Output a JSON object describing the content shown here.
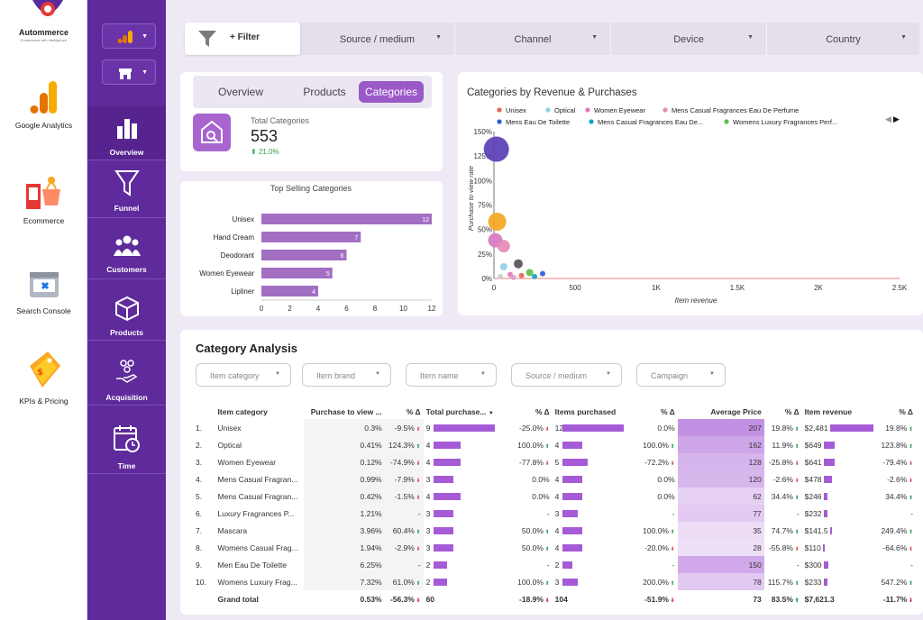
{
  "brand": {
    "name": "Autommerce",
    "tagline": "Ecommerce with Intelligence"
  },
  "apps": [
    {
      "label": "Google Analytics",
      "icon": "google-analytics-icon"
    },
    {
      "label": "Ecommerce",
      "icon": "shopping-icon"
    },
    {
      "label": "Search Console",
      "icon": "toolbox-icon"
    },
    {
      "label": "KPIs & Pricing",
      "icon": "price-tag-icon"
    }
  ],
  "nav": {
    "items": [
      {
        "label": "Overview",
        "icon": "bar-chart-icon"
      },
      {
        "label": "Funnel",
        "icon": "funnel-icon"
      },
      {
        "label": "Customers",
        "icon": "people-icon"
      },
      {
        "label": "Products",
        "icon": "box-icon"
      },
      {
        "label": "Acquisition",
        "icon": "hand-coins-icon"
      },
      {
        "label": "Time",
        "icon": "calendar-clock-icon"
      }
    ]
  },
  "filters": {
    "filter_label": "+ Filter",
    "dropdowns": [
      "Source / medium",
      "Channel",
      "Device",
      "Country"
    ]
  },
  "tabs": [
    "Overview",
    "Products",
    "Categories"
  ],
  "active_tab": "Categories",
  "kpi": {
    "title": "Total Categories",
    "value": "553",
    "delta": "21.0%"
  },
  "top_selling": {
    "title": "Top Selling Categories",
    "categories": [
      "Unisex",
      "Hand Cream",
      "Deodorant",
      "Women Eyewear",
      "Lipliner"
    ],
    "values": [
      12,
      7,
      6,
      5,
      4
    ],
    "ticks": [
      "0",
      "2",
      "4",
      "6",
      "8",
      "10",
      "12"
    ],
    "color": "#a26fc3"
  },
  "scatter": {
    "title": "Categories by Revenue & Purchases",
    "xlabel": "Item revenue",
    "ylabel": "Purchase to view rate",
    "xticks": [
      "0",
      "500",
      "1K",
      "1.5K",
      "2K",
      "2.5K"
    ],
    "yticks": [
      "0%",
      "25%",
      "50%",
      "75%",
      "100%",
      "125%",
      "150%"
    ],
    "legend": [
      {
        "name": "Unisex",
        "color": "#e0675a"
      },
      {
        "name": "Optical",
        "color": "#8fcfea"
      },
      {
        "name": "Women Eyewear",
        "color": "#e57ab8"
      },
      {
        "name": "Mens Casual Fragrances Eau De Perfume",
        "color": "#e58ab8"
      },
      {
        "name": "Mens Eau De Toilette",
        "color": "#2d5bd8"
      },
      {
        "name": "Mens Casual Fragrances Eau De...",
        "color": "#12a3c9"
      },
      {
        "name": "Womens Luxury Fragrances Perf...",
        "color": "#5cc04b"
      }
    ]
  },
  "chart_data": {
    "type": "scatter",
    "title": "Categories by Revenue & Purchases",
    "xlabel": "Item revenue",
    "ylabel": "Purchase to view rate",
    "xlim": [
      0,
      2500
    ],
    "ylim": [
      0,
      150
    ],
    "points": [
      {
        "x": 15,
        "y": 132,
        "size": 14,
        "color": "#5b3fb5"
      },
      {
        "x": 20,
        "y": 58,
        "size": 10,
        "color": "#f5a623"
      },
      {
        "x": 8,
        "y": 39,
        "size": 8,
        "color": "#d77ac0"
      },
      {
        "x": 60,
        "y": 33,
        "size": 7,
        "color": "#e58ab8"
      },
      {
        "x": 150,
        "y": 15,
        "size": 5,
        "color": "#555555"
      },
      {
        "x": 60,
        "y": 12,
        "size": 4,
        "color": "#8fcfea"
      },
      {
        "x": 220,
        "y": 6,
        "size": 4,
        "color": "#5cc04b"
      },
      {
        "x": 100,
        "y": 4,
        "size": 3,
        "color": "#e57ab8"
      },
      {
        "x": 170,
        "y": 3,
        "size": 3,
        "color": "#e0675a"
      },
      {
        "x": 300,
        "y": 5,
        "size": 3,
        "color": "#2d5bd8"
      },
      {
        "x": 250,
        "y": 2,
        "size": 3,
        "color": "#12a3c9"
      },
      {
        "x": 40,
        "y": 2,
        "size": 3,
        "color": "#cccccc"
      },
      {
        "x": 120,
        "y": 1,
        "size": 3,
        "color": "#d7a0d0"
      }
    ]
  },
  "analysis": {
    "title": "Category Analysis",
    "chips": [
      "Item category",
      "Item brand",
      "Item name",
      "Source / medium",
      "Campaign"
    ],
    "headers": [
      "Item category",
      "Purchase to view ...",
      "% Δ",
      "Total purchase...",
      "% Δ",
      "Items purchased",
      "% Δ",
      "Average Price",
      "% Δ",
      "Item revenue",
      "% Δ"
    ],
    "rows": [
      {
        "idx": "1.",
        "category": "Unisex",
        "ptv": "0.3%",
        "ptv_d": "-9.5%",
        "tp": "9",
        "tp_d": "-25.0%",
        "ip": "12",
        "ip_d": "0.0%",
        "price": "207",
        "price_d": "19.8%",
        "rev": "$2,481",
        "rev_d": "19.8%"
      },
      {
        "idx": "2.",
        "category": "Optical",
        "ptv": "0.41%",
        "ptv_d": "124.3%",
        "tp": "4",
        "tp_d": "100.0%",
        "ip": "4",
        "ip_d": "100.0%",
        "price": "162",
        "price_d": "11.9%",
        "rev": "$649",
        "rev_d": "123.8%"
      },
      {
        "idx": "3.",
        "category": "Women Eyewear",
        "ptv": "0.12%",
        "ptv_d": "-74.9%",
        "tp": "4",
        "tp_d": "-77.8%",
        "ip": "5",
        "ip_d": "-72.2%",
        "price": "128",
        "price_d": "-25.8%",
        "rev": "$641",
        "rev_d": "-79.4%"
      },
      {
        "idx": "4.",
        "category": "Mens Casual Fragran...",
        "ptv": "0.99%",
        "ptv_d": "-7.9%",
        "tp": "3",
        "tp_d": "0.0%",
        "ip": "4",
        "ip_d": "0.0%",
        "price": "120",
        "price_d": "-2.6%",
        "rev": "$478",
        "rev_d": "-2.6%"
      },
      {
        "idx": "5.",
        "category": "Mens Casual Fragran...",
        "ptv": "0.42%",
        "ptv_d": "-1.5%",
        "tp": "4",
        "tp_d": "0.0%",
        "ip": "4",
        "ip_d": "0.0%",
        "price": "62",
        "price_d": "34.4%",
        "rev": "$246",
        "rev_d": "34.4%"
      },
      {
        "idx": "6.",
        "category": "Luxury Fragrances P...",
        "ptv": "1.21%",
        "ptv_d": "-",
        "tp": "3",
        "tp_d": "-",
        "ip": "3",
        "ip_d": "-",
        "price": "77",
        "price_d": "-",
        "rev": "$232",
        "rev_d": "-"
      },
      {
        "idx": "7.",
        "category": "Mascara",
        "ptv": "3.96%",
        "ptv_d": "60.4%",
        "tp": "3",
        "tp_d": "50.0%",
        "ip": "4",
        "ip_d": "100.0%",
        "price": "35",
        "price_d": "74.7%",
        "rev": "$141.5",
        "rev_d": "249.4%"
      },
      {
        "idx": "8.",
        "category": "Womens Casual Frag...",
        "ptv": "1.94%",
        "ptv_d": "-2.9%",
        "tp": "3",
        "tp_d": "50.0%",
        "ip": "4",
        "ip_d": "-20.0%",
        "price": "28",
        "price_d": "-55.8%",
        "rev": "$110",
        "rev_d": "-64.6%"
      },
      {
        "idx": "9.",
        "category": "Men Eau De Toilette",
        "ptv": "6.25%",
        "ptv_d": "-",
        "tp": "2",
        "tp_d": "-",
        "ip": "2",
        "ip_d": "-",
        "price": "150",
        "price_d": "-",
        "rev": "$300",
        "rev_d": "-"
      },
      {
        "idx": "10.",
        "category": "Womens Luxury Frag...",
        "ptv": "7.32%",
        "ptv_d": "61.0%",
        "tp": "2",
        "tp_d": "100.0%",
        "ip": "3",
        "ip_d": "200.0%",
        "price": "78",
        "price_d": "115.7%",
        "rev": "$233",
        "rev_d": "547.2%"
      }
    ],
    "total": {
      "label": "Grand total",
      "ptv": "0.53%",
      "ptv_d": "-56.3%",
      "tp": "60",
      "tp_d": "-18.9%",
      "ip": "104",
      "ip_d": "-51.9%",
      "price": "73",
      "price_d": "83.5%",
      "rev": "$7,621.3",
      "rev_d": "-11.7%"
    }
  }
}
